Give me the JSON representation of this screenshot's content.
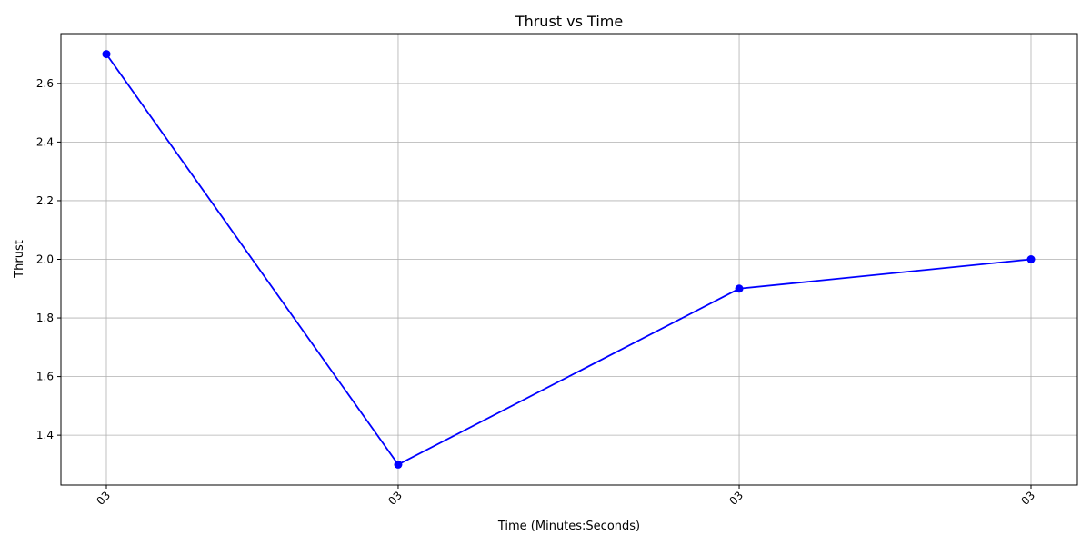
{
  "chart_data": {
    "type": "line",
    "title": "Thrust vs Time",
    "xlabel": "Time (Minutes:Seconds)",
    "ylabel": "Thrust",
    "x_tick_labels": [
      "03",
      "03",
      "03",
      "03"
    ],
    "x_relative": [
      0,
      0.3156,
      0.6844,
      1
    ],
    "values": [
      2.7,
      1.3,
      1.9,
      2.0
    ],
    "y_ticks": [
      1.4,
      1.6,
      1.8,
      2.0,
      2.2,
      2.4,
      2.6
    ],
    "y_tick_labels": [
      "1.4",
      "1.6",
      "1.8",
      "2.0",
      "2.2",
      "2.4",
      "2.6"
    ],
    "ylim": [
      1.23,
      2.77
    ],
    "grid": true,
    "line_color": "#0000ff",
    "grid_color": "#b0b0b0"
  }
}
